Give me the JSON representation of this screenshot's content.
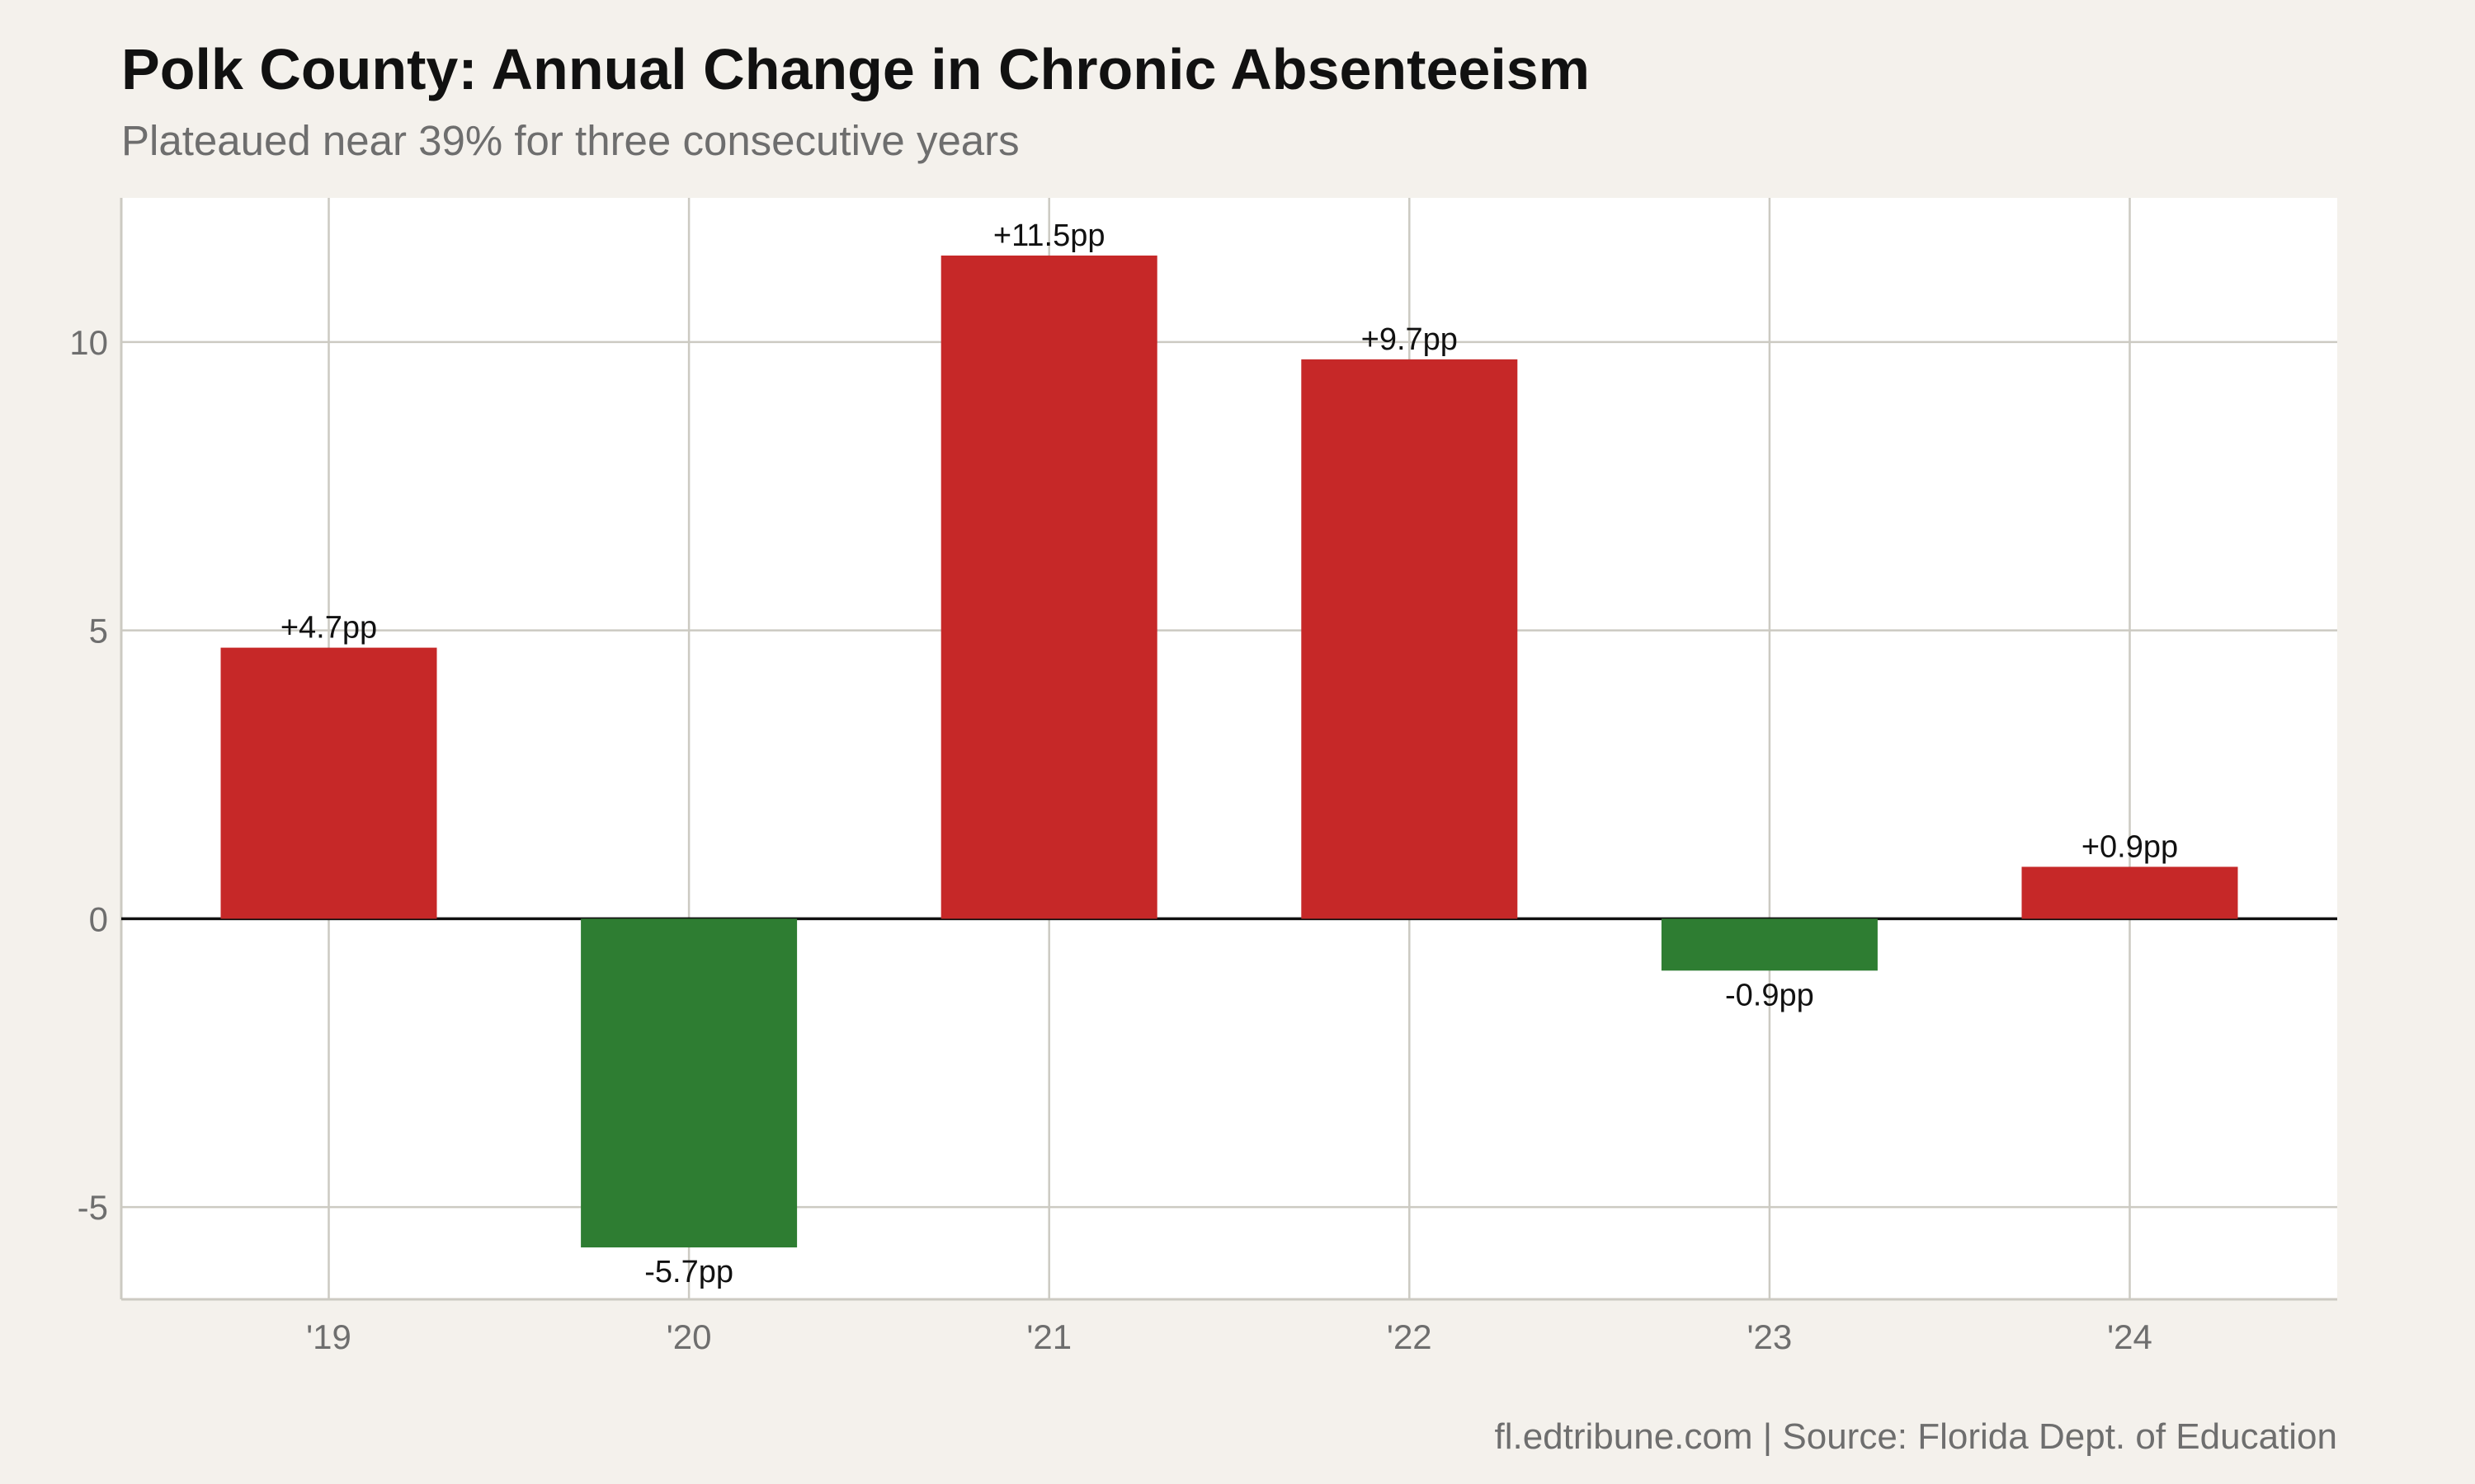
{
  "chart_data": {
    "type": "bar",
    "title": "Polk County: Annual Change in Chronic Absenteeism",
    "subtitle": "Plateaued near 39% for three consecutive years",
    "caption": "fl.edtribune.com | Source: Florida Dept. of Education",
    "xlabel": "",
    "ylabel": "",
    "categories": [
      "'19",
      "'20",
      "'21",
      "'22",
      "'23",
      "'24"
    ],
    "values": [
      4.7,
      -5.7,
      11.5,
      9.7,
      -0.9,
      0.9
    ],
    "data_labels": [
      "+4.7pp",
      "-5.7pp",
      "+11.5pp",
      "+9.7pp",
      "-0.9pp",
      "+0.9pp"
    ],
    "ylim": [
      -6.6,
      12.5
    ],
    "yticks": [
      -5,
      0,
      5,
      10
    ],
    "ytick_labels": [
      "-5",
      "0",
      "5",
      "10"
    ],
    "grid": true,
    "legend": "none",
    "colors": {
      "increase": "#c62828",
      "decrease": "#2e7d32",
      "panel": "#ffffff",
      "background": "#f4f1ec",
      "grid": "#cccac2",
      "zero_line": "#111111"
    }
  }
}
